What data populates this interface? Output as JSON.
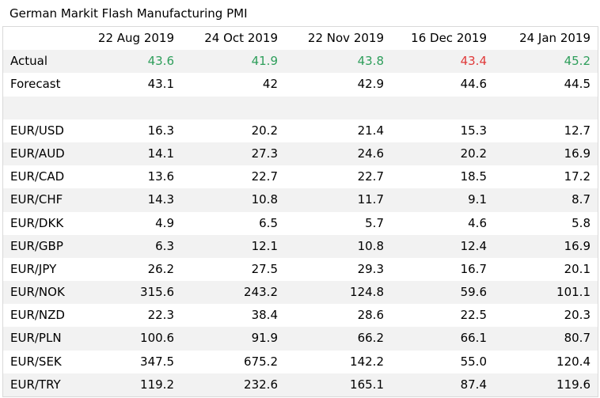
{
  "title": "German Markit Flash Manufacturing PMI",
  "columns": [
    "",
    "22 Aug 2019",
    "24 Oct 2019",
    "22 Nov 2019",
    "16 Dec 2019",
    "24 Jan 2019"
  ],
  "actual": {
    "label": "Actual",
    "values": [
      "43.6",
      "41.9",
      "43.8",
      "43.4",
      "45.2"
    ],
    "colors": [
      "#2e9e5b",
      "#2e9e5b",
      "#2e9e5b",
      "#e03a3a",
      "#2e9e5b"
    ]
  },
  "forecast": {
    "label": "Forecast",
    "values": [
      "43.1",
      "42",
      "42.9",
      "44.6",
      "44.5"
    ]
  },
  "pairs": [
    {
      "label": "EUR/USD",
      "values": [
        "16.3",
        "20.2",
        "21.4",
        "15.3",
        "12.7"
      ]
    },
    {
      "label": "EUR/AUD",
      "values": [
        "14.1",
        "27.3",
        "24.6",
        "20.2",
        "16.9"
      ]
    },
    {
      "label": "EUR/CAD",
      "values": [
        "13.6",
        "22.7",
        "22.7",
        "18.5",
        "17.2"
      ]
    },
    {
      "label": "EUR/CHF",
      "values": [
        "14.3",
        "10.8",
        "11.7",
        "9.1",
        "8.7"
      ]
    },
    {
      "label": "EUR/DKK",
      "values": [
        "4.9",
        "6.5",
        "5.7",
        "4.6",
        "5.8"
      ]
    },
    {
      "label": "EUR/GBP",
      "values": [
        "6.3",
        "12.1",
        "10.8",
        "12.4",
        "16.9"
      ]
    },
    {
      "label": "EUR/JPY",
      "values": [
        "26.2",
        "27.5",
        "29.3",
        "16.7",
        "20.1"
      ]
    },
    {
      "label": "EUR/NOK",
      "values": [
        "315.6",
        "243.2",
        "124.8",
        "59.6",
        "101.1"
      ]
    },
    {
      "label": "EUR/NZD",
      "values": [
        "22.3",
        "38.4",
        "28.6",
        "22.5",
        "20.3"
      ]
    },
    {
      "label": "EUR/PLN",
      "values": [
        "100.6",
        "91.9",
        "66.2",
        "66.1",
        "80.7"
      ]
    },
    {
      "label": "EUR/SEK",
      "values": [
        "347.5",
        "675.2",
        "142.2",
        "55.0",
        "120.4"
      ]
    },
    {
      "label": "EUR/TRY",
      "values": [
        "119.2",
        "232.6",
        "165.1",
        "87.4",
        "119.6"
      ]
    }
  ]
}
